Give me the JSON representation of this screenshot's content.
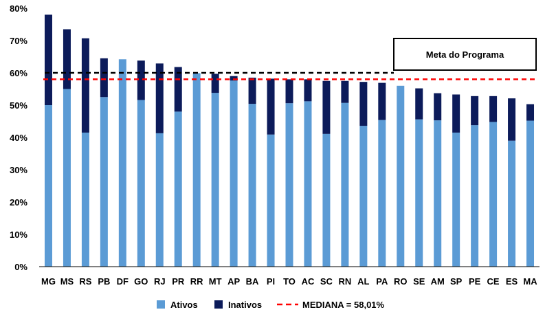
{
  "chart_data": {
    "type": "bar",
    "stacked": true,
    "categories": [
      "MG",
      "MS",
      "RS",
      "PB",
      "DF",
      "GO",
      "RJ",
      "PR",
      "RR",
      "MT",
      "AP",
      "BA",
      "PI",
      "TO",
      "AC",
      "SC",
      "RN",
      "AL",
      "PA",
      "RO",
      "SE",
      "AM",
      "SP",
      "PE",
      "CE",
      "ES",
      "MA"
    ],
    "series": [
      {
        "name": "Ativos",
        "color": "#5B9BD5",
        "values": [
          50.0,
          55.0,
          41.5,
          52.5,
          64.2,
          51.6,
          41.3,
          48.0,
          59.9,
          53.8,
          57.6,
          50.4,
          40.9,
          50.6,
          51.2,
          41.1,
          50.7,
          43.6,
          45.4,
          56.0,
          45.6,
          45.3,
          41.5,
          43.8,
          44.8,
          39.0,
          45.2
        ]
      },
      {
        "name": "Inativos",
        "color": "#0C1B5A",
        "values": [
          28.0,
          18.5,
          29.2,
          12.0,
          0.0,
          12.2,
          21.6,
          13.8,
          0.0,
          5.9,
          1.4,
          8.1,
          17.3,
          7.4,
          6.8,
          16.4,
          6.8,
          13.6,
          11.5,
          0.0,
          9.6,
          8.4,
          11.8,
          9.0,
          8.0,
          13.1,
          5.1
        ]
      }
    ],
    "reference_lines": [
      {
        "name": "MEDIANA = 58,01%",
        "value": 58.01,
        "color": "#FF0000",
        "style": "dashed"
      },
      {
        "name": "Meta do Programa",
        "value": 60.0,
        "color": "#000000",
        "style": "dashed"
      }
    ],
    "ylim": [
      0,
      80
    ],
    "yticks": [
      0,
      10,
      20,
      30,
      40,
      50,
      60,
      70,
      80
    ],
    "ytick_suffix": "%",
    "legend_position": "bottom",
    "grid": false
  },
  "legend": {
    "ativos": "Ativos",
    "inativos": "Inativos",
    "mediana": "MEDIANA = 58,01%"
  },
  "goal_box_label": "Meta do Programa"
}
